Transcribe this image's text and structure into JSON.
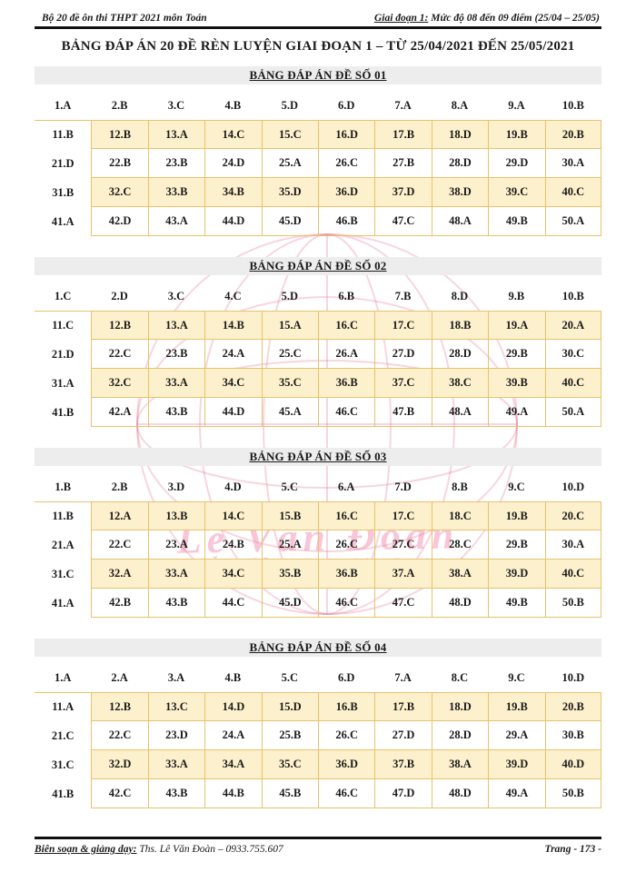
{
  "header": {
    "left": "Bộ 20 đề ôn thi THPT 2021 môn Toán",
    "right_label": "Giai đoạn 1:",
    "right_text": "  Mức độ 08 đến 09 điểm (25/04 – 25/05)"
  },
  "title": "BẢNG ĐÁP ÁN 20 ĐỀ RÈN LUYỆN GIAI ĐOẠN 1 – TỪ 25/04/2021 ĐẾN 25/05/2021",
  "watermark": {
    "signature": "Lê Văn Đoàn",
    "names": "Nguyễn Tiến Hà - Bùi Sỹ Khánh",
    "pink": "#e06080"
  },
  "sections": [
    {
      "heading": "BẢNG ĐÁP ÁN ĐỀ SỐ 01",
      "rows": [
        [
          "1.A",
          "2.B",
          "3.C",
          "4.B",
          "5.D",
          "6.D",
          "7.A",
          "8.A",
          "9.A",
          "10.B"
        ],
        [
          "11.B",
          "12.B",
          "13.A",
          "14.C",
          "15.C",
          "16.D",
          "17.B",
          "18.D",
          "19.B",
          "20.B"
        ],
        [
          "21.D",
          "22.B",
          "23.B",
          "24.D",
          "25.A",
          "26.C",
          "27.B",
          "28.D",
          "29.D",
          "30.A"
        ],
        [
          "31.B",
          "32.C",
          "33.B",
          "34.B",
          "35.D",
          "36.D",
          "37.D",
          "38.D",
          "39.C",
          "40.C"
        ],
        [
          "41.A",
          "42.D",
          "43.A",
          "44.D",
          "45.D",
          "46.B",
          "47.C",
          "48.A",
          "49.B",
          "50.A"
        ]
      ]
    },
    {
      "heading": "BẢNG ĐÁP ÁN ĐỀ SỐ 02",
      "rows": [
        [
          "1.C",
          "2.D",
          "3.C",
          "4.C",
          "5.D",
          "6.B",
          "7.B",
          "8.D",
          "9.B",
          "10.B"
        ],
        [
          "11.C",
          "12.B",
          "13.A",
          "14.B",
          "15.A",
          "16.C",
          "17.C",
          "18.B",
          "19.A",
          "20.A"
        ],
        [
          "21.D",
          "22.C",
          "23.B",
          "24.A",
          "25.C",
          "26.A",
          "27.D",
          "28.D",
          "29.B",
          "30.C"
        ],
        [
          "31.A",
          "32.C",
          "33.A",
          "34.C",
          "35.C",
          "36.B",
          "37.C",
          "38.C",
          "39.B",
          "40.C"
        ],
        [
          "41.B",
          "42.A",
          "43.B",
          "44.D",
          "45.A",
          "46.C",
          "47.B",
          "48.A",
          "49.A",
          "50.A"
        ]
      ]
    },
    {
      "heading": "BẢNG ĐÁP ÁN ĐỀ SỐ 03",
      "rows": [
        [
          "1.B",
          "2.B",
          "3.D",
          "4.D",
          "5.C",
          "6.A",
          "7.D",
          "8.B",
          "9.C",
          "10.D"
        ],
        [
          "11.B",
          "12.A",
          "13.B",
          "14.C",
          "15.B",
          "16.C",
          "17.C",
          "18.C",
          "19.B",
          "20.C"
        ],
        [
          "21.A",
          "22.C",
          "23.A",
          "24.B",
          "25.A",
          "26.C",
          "27.C",
          "28.C",
          "29.B",
          "30.A"
        ],
        [
          "31.C",
          "32.A",
          "33.A",
          "34.C",
          "35.B",
          "36.B",
          "37.A",
          "38.A",
          "39.D",
          "40.C"
        ],
        [
          "41.A",
          "42.B",
          "43.B",
          "44.C",
          "45.D",
          "46.C",
          "47.C",
          "48.D",
          "49.B",
          "50.B"
        ]
      ]
    },
    {
      "heading": "BẢNG ĐÁP ÁN ĐỀ SỐ 04",
      "rows": [
        [
          "1.A",
          "2.A",
          "3.A",
          "4.B",
          "5.C",
          "6.D",
          "7.A",
          "8.C",
          "9.C",
          "10.D"
        ],
        [
          "11.A",
          "12.B",
          "13.C",
          "14.D",
          "15.D",
          "16.B",
          "17.B",
          "18.D",
          "19.B",
          "20.B"
        ],
        [
          "21.C",
          "22.C",
          "23.D",
          "24.A",
          "25.B",
          "26.C",
          "27.D",
          "28.D",
          "29.A",
          "30.B"
        ],
        [
          "31.C",
          "32.D",
          "33.A",
          "34.A",
          "35.C",
          "36.D",
          "37.B",
          "38.A",
          "39.D",
          "40.D"
        ],
        [
          "41.B",
          "42.C",
          "43.B",
          "44.B",
          "45.B",
          "46.C",
          "47.D",
          "48.D",
          "49.A",
          "50.B"
        ]
      ]
    }
  ],
  "footer": {
    "left_label": "Biên soạn & giảng dạy:",
    "left_text": " Ths. Lê Văn Đoàn – 0933.755.607",
    "right": "Trang - 173 -"
  },
  "colors": {
    "cell_fill": "#fdf0cc",
    "cell_border": "#e8c26c",
    "section_bar": "#ededed",
    "rule": "#111111"
  }
}
